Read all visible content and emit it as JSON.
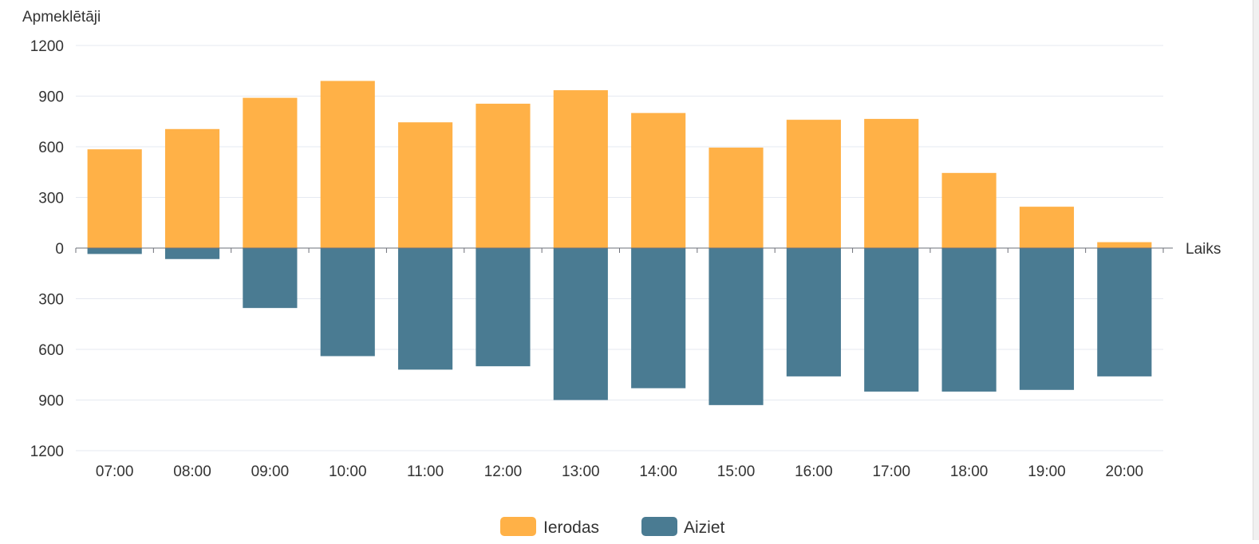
{
  "chart_data": {
    "type": "bar",
    "ylabel": "Apmeklētāji",
    "xlabel": "Laiks",
    "categories": [
      "07:00",
      "08:00",
      "09:00",
      "10:00",
      "11:00",
      "12:00",
      "13:00",
      "14:00",
      "15:00",
      "16:00",
      "17:00",
      "18:00",
      "19:00",
      "20:00"
    ],
    "y_ticks": [
      {
        "value": 1200,
        "label": "1200"
      },
      {
        "value": 900,
        "label": "900"
      },
      {
        "value": 600,
        "label": "600"
      },
      {
        "value": 300,
        "label": "300"
      },
      {
        "value": 0,
        "label": "0"
      },
      {
        "value": -300,
        "label": "300"
      },
      {
        "value": -600,
        "label": "600"
      },
      {
        "value": -900,
        "label": "900"
      },
      {
        "value": -1200,
        "label": "1200"
      }
    ],
    "ylim": [
      -1200,
      1200
    ],
    "grid": true,
    "legend_position": "bottom-center",
    "series": [
      {
        "name": "Ierodas",
        "color": "#FFB147",
        "values": [
          585,
          705,
          890,
          990,
          745,
          855,
          935,
          800,
          595,
          760,
          765,
          445,
          245,
          35
        ]
      },
      {
        "name": "Aiziet",
        "color": "#4A7B92",
        "values": [
          -35,
          -65,
          -355,
          -640,
          -720,
          -700,
          -900,
          -830,
          -930,
          -760,
          -850,
          -850,
          -840,
          -760
        ]
      }
    ]
  }
}
